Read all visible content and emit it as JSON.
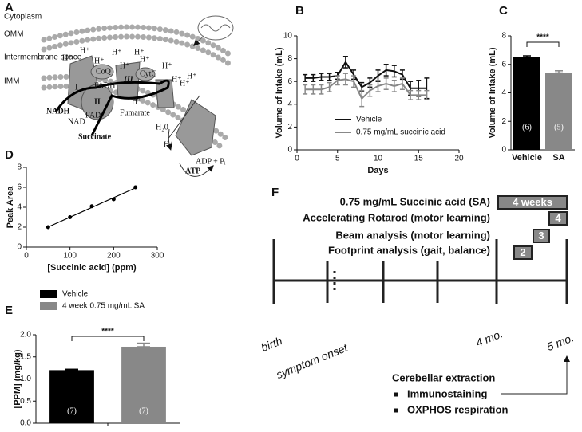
{
  "chart_data": [
    {
      "type": "line",
      "panel": "B",
      "xlabel": "Days",
      "ylabel": "Volume of Intake (mL)",
      "x": [
        1,
        2,
        3,
        4,
        5,
        6,
        7,
        8,
        9,
        10,
        11,
        12,
        13,
        14,
        15,
        16
      ],
      "xlim": [
        0,
        20
      ],
      "xticks": [
        0,
        5,
        10,
        15,
        20
      ],
      "ylim": [
        0,
        10
      ],
      "yticks": [
        0,
        2,
        4,
        6,
        8,
        10
      ],
      "series": [
        {
          "name": "Vehicle",
          "color": "#111111",
          "values": [
            6.3,
            6.3,
            6.4,
            6.4,
            6.5,
            7.7,
            6.6,
            5.5,
            5.9,
            6.5,
            7.0,
            6.9,
            6.6,
            5.4,
            5.4,
            5.4
          ],
          "errors": [
            0.3,
            0.3,
            0.3,
            0.3,
            0.3,
            0.5,
            0.4,
            0.4,
            0.4,
            0.5,
            0.5,
            0.5,
            0.4,
            0.6,
            0.7,
            0.9
          ]
        },
        {
          "name": "0.75 mg/mL succinic acid",
          "color": "#888888",
          "values": [
            5.3,
            5.3,
            5.3,
            5.5,
            6.1,
            6.2,
            6.0,
            4.5,
            5.2,
            5.6,
            5.8,
            5.6,
            5.8,
            4.8,
            4.8,
            4.8
          ],
          "errors": [
            0.4,
            0.4,
            0.4,
            0.4,
            0.4,
            0.5,
            0.5,
            0.7,
            0.5,
            0.5,
            0.5,
            0.5,
            0.5,
            0.4,
            0.4,
            0.4
          ]
        }
      ]
    },
    {
      "type": "bar",
      "panel": "C",
      "ylabel": "Volume of Intake (mL)",
      "categories": [
        "Vehicle",
        "SA"
      ],
      "values": [
        6.5,
        5.4
      ],
      "errors": [
        0.1,
        0.15
      ],
      "colors": [
        "#000000",
        "#888888"
      ],
      "annotations": [
        "(6)",
        "(5)"
      ],
      "significance": "****",
      "ylim": [
        0,
        8
      ],
      "yticks": [
        0,
        2,
        4,
        6,
        8
      ]
    },
    {
      "type": "scatter",
      "panel": "D",
      "xlabel": "[Succinic acid] (ppm)",
      "ylabel": "Peak Area",
      "x": [
        50,
        100,
        150,
        200,
        250
      ],
      "values": [
        2.0,
        3.0,
        4.1,
        4.8,
        6.0
      ],
      "color": "#000000",
      "fit_line": true,
      "xlim": [
        0,
        300
      ],
      "xticks": [
        0,
        100,
        200,
        300
      ],
      "ylim": [
        0,
        8
      ],
      "yticks": [
        0,
        2,
        4,
        6,
        8
      ]
    },
    {
      "type": "groupbar",
      "panel": "E",
      "ylabel": "[PPM] (mg/kg)",
      "series": [
        {
          "name": "Vehicle",
          "color": "#000000",
          "values": [
            1.2
          ],
          "errors": [
            0.02
          ],
          "annotation": "(7)"
        },
        {
          "name": "4 week 0.75 mg/mL SA",
          "color": "#888888",
          "values": [
            1.73
          ],
          "errors": [
            0.08
          ],
          "annotation": "(7)"
        }
      ],
      "significance": "****",
      "ylim": [
        0,
        2
      ],
      "yticks": [
        {
          "value": 0,
          "label": "0.0"
        },
        {
          "value": 0.5,
          "label": "0.5"
        },
        {
          "value": 1,
          "label": "1.0"
        },
        {
          "value": 1.5,
          "label": "1.5"
        },
        {
          "value": 2,
          "label": "2.0"
        }
      ]
    }
  ],
  "diagram_a": {
    "panel": "A",
    "cytoplasm": "Cytoplasm",
    "omm": "OMM",
    "intermembrane": "Intermembrane space",
    "imm": "IMM",
    "proton": "H⁺",
    "nadh": "NADH",
    "nad": "NAD",
    "fad": "FAD",
    "fadh": "FADH",
    "succinate": "Succinate",
    "fumarate": "Fumarate",
    "water": "H₂0",
    "adp": "ADP + Pᵢ",
    "atp": "ATP",
    "complexes": [
      "I",
      "II",
      "III"
    ],
    "coq": "CoQ",
    "cytc": "CytC"
  },
  "timeline_f": {
    "panel": "F",
    "treatments": [
      {
        "label": "0.75 mg/mL Succinic acid (SA)",
        "box": "4 weeks"
      },
      {
        "label": "Accelerating Rotarod (motor learning)",
        "box": "4"
      },
      {
        "label": "Beam analysis (motor learning)",
        "box": "3"
      },
      {
        "label": "Footprint analysis (gait, balance)",
        "box": "2"
      }
    ],
    "milestones": [
      "birth",
      "symptom onset",
      "4 mo.",
      "5 mo."
    ],
    "endpoint": "Cerebellar extraction",
    "assays": [
      "Immunostaining",
      "OXPHOS respiration"
    ]
  }
}
